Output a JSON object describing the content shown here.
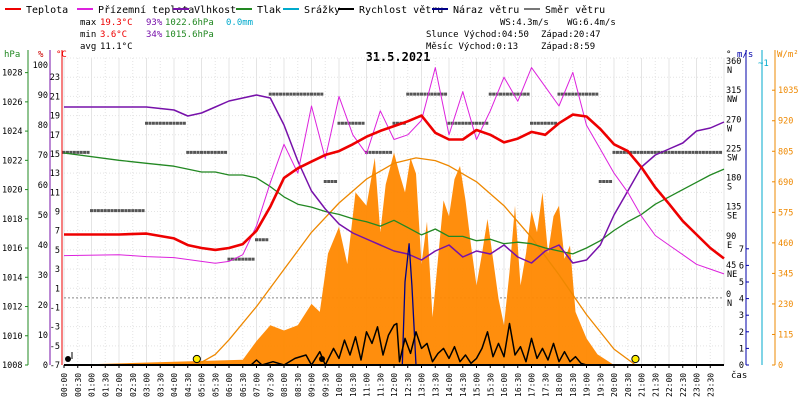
{
  "legend": [
    {
      "label": "Teplota",
      "color": "#ee0000"
    },
    {
      "label": "Přízemní teplota",
      "color": "#dd22dd"
    },
    {
      "label": "Vlhkost",
      "color": "#7711aa"
    },
    {
      "label": "Tlak",
      "color": "#228822"
    },
    {
      "label": "Srážky",
      "color": "#00aacc"
    },
    {
      "label": "Rychlost větru",
      "color": "#000000"
    },
    {
      "label": "Náraz větru",
      "color": "#000088"
    },
    {
      "label": "Směr větru",
      "color": "#777777"
    }
  ],
  "stats": {
    "max": {
      "label": "max",
      "temp": "19.3°C",
      "hum": "93%",
      "press": "1022.6hPa",
      "rain": "0.0mm"
    },
    "min": {
      "label": "min",
      "temp": "3.6°C",
      "hum": "34%",
      "press": "1015.6hPa"
    },
    "avg": {
      "label": "avg",
      "temp": "11.1°C"
    }
  },
  "info": {
    "ws": "WS:4.3m/s",
    "wg": "WG:6.4m/s",
    "sun": "Slunce Východ:04:50",
    "sunset": "Západ:20:47",
    "moon": "Měsíc  Východ:0:13",
    "moonset": "Západ:8:59"
  },
  "chart_data": {
    "type": "line",
    "title": "31.5.2021",
    "xlabel": "čas",
    "x_ticks": [
      "00:00",
      "00:30",
      "01:00",
      "01:30",
      "02:00",
      "02:30",
      "03:00",
      "03:30",
      "04:00",
      "04:30",
      "05:00",
      "05:30",
      "06:00",
      "06:30",
      "07:00",
      "07:30",
      "08:00",
      "08:30",
      "09:00",
      "09:30",
      "10:00",
      "10:30",
      "11:00",
      "11:30",
      "12:00",
      "12:30",
      "13:00",
      "13:30",
      "14:00",
      "14:30",
      "15:00",
      "15:30",
      "16:00",
      "16:30",
      "17:00",
      "17:30",
      "18:00",
      "18:30",
      "19:00",
      "19:30",
      "20:00",
      "20:30",
      "21:00",
      "21:30",
      "22:00",
      "22:30",
      "23:00",
      "23:30"
    ],
    "axes": {
      "hpa": {
        "label": "hPa",
        "color": "#228822",
        "ticks": [
          "1008",
          "1010",
          "1012",
          "1014",
          "1016",
          "1018",
          "1020",
          "1022",
          "1024",
          "1026",
          "1028"
        ],
        "range": [
          1008,
          1029
        ]
      },
      "pct": {
        "label": "%",
        "color": "#7711aa",
        "ticks": [
          "0",
          "10",
          "20",
          "30",
          "40",
          "50",
          "60",
          "70",
          "80",
          "90",
          "100"
        ]
      },
      "temp": {
        "label": "°C",
        "color": "#ee0000",
        "ticks": [
          "-7",
          "-5",
          "-3",
          "-1",
          "1",
          "3",
          "5",
          "7",
          "9",
          "11",
          "13",
          "15",
          "17",
          "19",
          "21",
          "23"
        ],
        "range": [
          -7,
          25
        ]
      },
      "dir": {
        "label": "°",
        "ticks": [
          "0",
          "45",
          "90",
          "135",
          "180",
          "225",
          "270",
          "315",
          "360"
        ],
        "names": [
          "N",
          "NE",
          "E",
          "SE",
          "S",
          "SW",
          "W",
          "NW",
          "N"
        ]
      },
      "ms": {
        "label": "m/s",
        "color": "#0000aa",
        "ticks": [
          "0",
          "1",
          "2",
          "3",
          "4",
          "5",
          "6",
          "7"
        ]
      },
      "mm": {
        "label": "~1",
        "color": "#00aacc"
      },
      "wm2": {
        "label": "W/m²",
        "color": "#ee8800",
        "ticks": [
          "0",
          "115",
          "230",
          "345",
          "460",
          "575",
          "690",
          "805",
          "920",
          "1035"
        ],
        "range": [
          0,
          1150
        ]
      }
    },
    "series": [
      {
        "name": "Teplota",
        "axis": "temp",
        "color": "#ee0000",
        "x": [
          0,
          2,
          3,
          4,
          4.5,
          5,
          5.5,
          6,
          6.5,
          7,
          7.5,
          8,
          8.5,
          9,
          9.5,
          10,
          10.5,
          11,
          11.5,
          12,
          12.5,
          13,
          13.5,
          14,
          14.5,
          15,
          15.5,
          16,
          16.5,
          17,
          17.5,
          18,
          18.5,
          19,
          19.5,
          20,
          20.5,
          21,
          21.5,
          22,
          22.5,
          23,
          23.5,
          24
        ],
        "y": [
          6.6,
          6.6,
          6.7,
          6.2,
          5.5,
          5.2,
          5.0,
          5.2,
          5.6,
          7.0,
          9.5,
          12.5,
          13.5,
          14.2,
          14.9,
          15.3,
          16.0,
          16.8,
          17.4,
          17.9,
          18.4,
          19.0,
          17.2,
          16.5,
          16.5,
          17.5,
          17.0,
          16.2,
          16.6,
          17.3,
          17.0,
          18.2,
          19.1,
          18.9,
          17.6,
          16.0,
          15.3,
          13.6,
          11.5,
          9.8,
          8.0,
          6.6,
          5.2,
          4.1
        ]
      },
      {
        "name": "Přízemní teplota",
        "axis": "temp",
        "color": "#dd22dd",
        "x": [
          0,
          2,
          3,
          4,
          4.5,
          5,
          5.5,
          6,
          6.5,
          7,
          7.5,
          8,
          8.5,
          9,
          9.5,
          10,
          10.5,
          11,
          11.5,
          12,
          12.5,
          13,
          13.5,
          14,
          14.5,
          15,
          15.5,
          16,
          16.5,
          17,
          17.5,
          18,
          18.5,
          19,
          19.5,
          20,
          20.5,
          21,
          21.5,
          22,
          22.5,
          23,
          23.5,
          24
        ],
        "y": [
          4.4,
          4.5,
          4.3,
          4.2,
          4.0,
          3.8,
          3.6,
          3.8,
          4.5,
          7.5,
          12.0,
          16.0,
          13.0,
          20.0,
          14.5,
          21.0,
          17.0,
          15.0,
          19.5,
          16.5,
          17.0,
          18.5,
          24.0,
          17.0,
          21.5,
          16.5,
          19.5,
          23.0,
          20.5,
          24.0,
          22.0,
          20.0,
          23.5,
          18.0,
          15.5,
          13.0,
          11.0,
          8.5,
          6.5,
          5.5,
          4.5,
          3.5,
          3.0,
          2.5
        ]
      },
      {
        "name": "Vlhkost",
        "axis": "pct",
        "color": "#7711aa",
        "x": [
          0,
          2,
          3,
          4,
          4.5,
          5,
          5.5,
          6,
          6.5,
          7,
          7.5,
          8,
          8.5,
          9,
          9.5,
          10,
          10.5,
          11,
          11.5,
          12,
          12.5,
          13,
          13.5,
          14,
          14.5,
          15,
          15.5,
          16,
          16.5,
          17,
          17.5,
          18,
          18.5,
          19,
          19.5,
          20,
          20.5,
          21,
          21.5,
          22,
          22.5,
          23,
          23.5,
          24
        ],
        "y": [
          86,
          86,
          86,
          85,
          83,
          84,
          86,
          88,
          89,
          90,
          89,
          80,
          68,
          58,
          52,
          47,
          44,
          42,
          40,
          38,
          37,
          35,
          38,
          40,
          36,
          38,
          37,
          40,
          36,
          34,
          38,
          40,
          34,
          35,
          40,
          50,
          58,
          66,
          70,
          72,
          74,
          78,
          79,
          81
        ]
      },
      {
        "name": "Tlak",
        "axis": "hpa",
        "color": "#228822",
        "x": [
          0,
          2,
          3,
          4,
          4.5,
          5,
          5.5,
          6,
          6.5,
          7,
          7.5,
          8,
          8.5,
          9,
          9.5,
          10,
          10.5,
          11,
          11.5,
          12,
          12.5,
          13,
          13.5,
          14,
          14.5,
          15,
          15.5,
          16,
          16.5,
          17,
          17.5,
          18,
          18.5,
          19,
          19.5,
          20,
          20.5,
          21,
          21.5,
          22,
          22.5,
          23,
          23.5,
          24
        ],
        "y": [
          1022.5,
          1022.0,
          1021.8,
          1021.6,
          1021.4,
          1021.2,
          1021.2,
          1021.0,
          1021.0,
          1020.8,
          1020.2,
          1019.5,
          1019.0,
          1018.8,
          1018.5,
          1018.3,
          1018.0,
          1017.8,
          1017.5,
          1017.9,
          1017.4,
          1016.9,
          1017.3,
          1016.8,
          1016.8,
          1016.5,
          1016.6,
          1016.3,
          1016.4,
          1016.3,
          1016.0,
          1015.8,
          1015.6,
          1016.0,
          1016.5,
          1017.2,
          1017.8,
          1018.3,
          1019.0,
          1019.5,
          1020.0,
          1020.5,
          1021.0,
          1021.4
        ]
      },
      {
        "name": "Rychlost větru",
        "axis": "ms",
        "color": "#000000",
        "x": [
          0,
          6,
          6.8,
          7,
          7.2,
          7.6,
          8,
          8.4,
          8.8,
          9,
          9.3,
          9.5,
          9.8,
          10,
          10.2,
          10.4,
          10.6,
          10.8,
          11,
          11.2,
          11.4,
          11.6,
          11.8,
          12,
          12.1,
          12.2,
          12.4,
          12.6,
          12.8,
          13,
          13.2,
          13.4,
          13.6,
          13.8,
          14,
          14.2,
          14.4,
          14.6,
          14.8,
          15,
          15.2,
          15.4,
          15.6,
          15.8,
          16,
          16.2,
          16.4,
          16.6,
          16.8,
          17,
          17.2,
          17.4,
          17.6,
          17.8,
          18,
          18.2,
          18.4,
          18.6,
          18.8,
          19,
          19.5,
          24
        ],
        "y": [
          0,
          0,
          0,
          0.3,
          0,
          0.2,
          0,
          0.4,
          0.6,
          0,
          0.8,
          0,
          1.0,
          0.4,
          1.5,
          0.6,
          1.7,
          0.3,
          2.0,
          1.3,
          2.3,
          0.6,
          1.8,
          2.4,
          2.5,
          0.2,
          1.6,
          0.7,
          2.0,
          1.0,
          1.3,
          0.2,
          0.7,
          1.0,
          0.4,
          1.1,
          0.2,
          0.6,
          0.1,
          0.4,
          1.0,
          2.0,
          0.5,
          1.3,
          0.5,
          2.5,
          0.6,
          1.1,
          0.2,
          1.6,
          0.4,
          1.0,
          0.3,
          1.3,
          0.2,
          0.8,
          0.2,
          0.5,
          0.1,
          0,
          0,
          0
        ]
      },
      {
        "name": "Náraz větru",
        "axis": "ms",
        "color": "#000088",
        "x": [
          0,
          12.3,
          12.4,
          12.55,
          12.65,
          12.8,
          24
        ],
        "y": [
          0,
          0,
          5.0,
          7.3,
          4.8,
          0,
          0
        ]
      },
      {
        "name": "Směr větru",
        "axis": "dir",
        "color": "#555555",
        "x": [
          0,
          0.5,
          1,
          1.5,
          2,
          2.5,
          3,
          3.5,
          4,
          4.5,
          5,
          5.5,
          6,
          6.5,
          7,
          7.5,
          8,
          8.5,
          9,
          9.5,
          10,
          10.5,
          11,
          11.5,
          12,
          12.5,
          13,
          13.5,
          14,
          14.5,
          15,
          15.5,
          16,
          16.5,
          17,
          17.5,
          18,
          18.5,
          19,
          19.5,
          20,
          20.5,
          21,
          21.5,
          22,
          22.5,
          23,
          23.5
        ],
        "y": [
          225,
          225,
          135,
          135,
          135,
          135,
          270,
          270,
          270,
          225,
          225,
          225,
          60,
          60,
          90,
          315,
          315,
          315,
          315,
          180,
          270,
          270,
          225,
          225,
          270,
          315,
          315,
          315,
          270,
          270,
          270,
          315,
          315,
          315,
          270,
          270,
          315,
          315,
          315,
          180,
          225,
          225,
          225,
          225,
          225,
          225,
          225,
          225
        ]
      },
      {
        "name": "Srážky",
        "axis": "mm",
        "color": "#00aacc",
        "x": [
          0,
          24
        ],
        "y": [
          0,
          0
        ]
      },
      {
        "name": "Solární radiace",
        "axis": "wm2",
        "color": "#ff8800",
        "x": [
          0,
          6.5,
          7,
          7.5,
          8,
          8.5,
          9,
          9.3,
          9.6,
          10,
          10.3,
          10.6,
          11,
          11.3,
          11.5,
          11.7,
          12,
          12.2,
          12.4,
          12.6,
          12.8,
          13,
          13.2,
          13.4,
          13.6,
          13.8,
          14,
          14.2,
          14.4,
          14.6,
          14.8,
          15,
          15.2,
          15.4,
          15.6,
          15.8,
          16,
          16.2,
          16.4,
          16.6,
          16.8,
          17,
          17.2,
          17.4,
          17.6,
          17.8,
          18,
          18.2,
          18.4,
          18.6,
          19,
          19.4,
          20,
          24
        ],
        "y": [
          0,
          20,
          90,
          150,
          130,
          150,
          230,
          200,
          420,
          520,
          380,
          650,
          600,
          780,
          500,
          680,
          800,
          720,
          650,
          780,
          720,
          380,
          540,
          180,
          400,
          620,
          560,
          700,
          750,
          620,
          450,
          300,
          420,
          550,
          400,
          250,
          150,
          350,
          600,
          300,
          420,
          580,
          500,
          650,
          420,
          560,
          600,
          400,
          450,
          200,
          100,
          40,
          0,
          0
        ]
      },
      {
        "name": "Teoretická radiace",
        "axis": "wm2",
        "color": "#ee8800",
        "x": [
          4.83,
          5.5,
          6,
          7,
          8,
          9,
          10,
          11,
          12,
          12.8,
          13.5,
          14,
          15,
          16,
          17,
          18,
          19,
          20,
          20.78
        ],
        "y": [
          0,
          40,
          95,
          220,
          360,
          500,
          610,
          700,
          760,
          780,
          770,
          750,
          690,
          600,
          480,
          340,
          190,
          60,
          0
        ]
      }
    ],
    "markers": [
      {
        "name": "východ slunce",
        "x": 4.83
      },
      {
        "name": "západ slunce",
        "x": 20.78
      }
    ],
    "grid": true,
    "legend_position": "top"
  }
}
